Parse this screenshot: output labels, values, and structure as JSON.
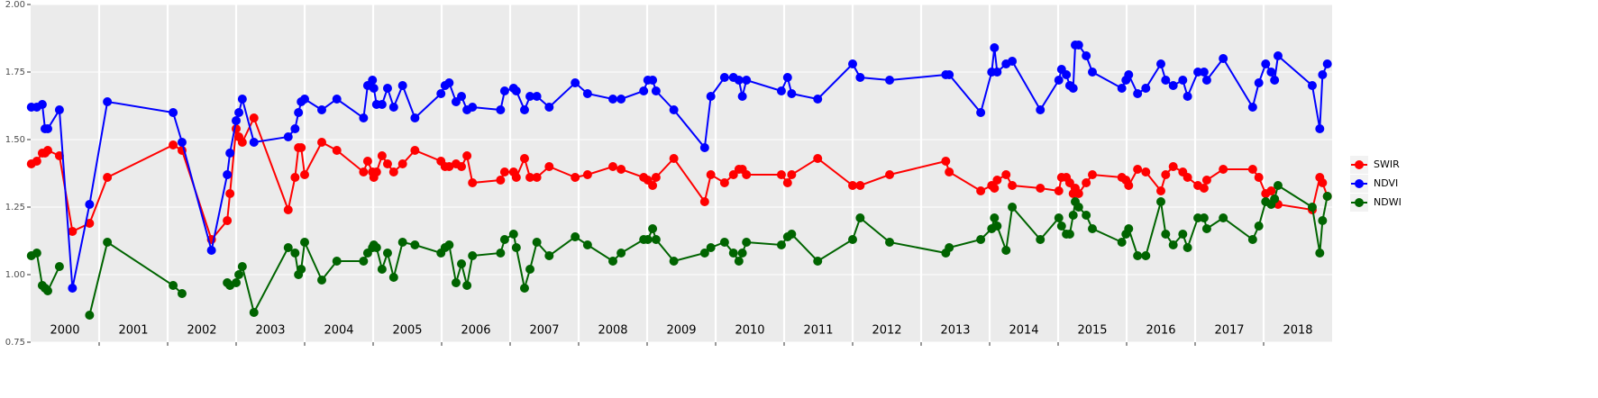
{
  "chart_data": {
    "type": "line",
    "x": [
      2000.01,
      2000.09,
      2000.17,
      2000.21,
      2000.25,
      2000.42,
      2000.61,
      2000.86,
      2001.12,
      2002.08,
      2002.21,
      2002.64,
      2002.87,
      2002.91,
      2003.0,
      2003.04,
      2003.09,
      2003.26,
      2003.76,
      2003.86,
      2003.91,
      2003.95,
      2004.0,
      2004.25,
      2004.47,
      2004.86,
      2004.92,
      2004.99,
      2005.01,
      2005.05,
      2005.13,
      2005.21,
      2005.3,
      2005.43,
      2005.61,
      2005.99,
      2006.05,
      2006.11,
      2006.21,
      2006.29,
      2006.37,
      2006.45,
      2006.86,
      2006.92,
      2007.05,
      2007.09,
      2007.21,
      2007.29,
      2007.39,
      2007.57,
      2007.95,
      2008.13,
      2008.5,
      2008.62,
      2008.95,
      2009.01,
      2009.08,
      2009.13,
      2009.39,
      2009.84,
      2009.93,
      2010.13,
      2010.26,
      2010.34,
      2010.39,
      2010.45,
      2010.96,
      2011.05,
      2011.11,
      2011.49,
      2012.0,
      2012.11,
      2012.54,
      2013.36,
      2013.41,
      2013.87,
      2014.03,
      2014.07,
      2014.11,
      2014.24,
      2014.33,
      2014.74,
      2015.01,
      2015.05,
      2015.12,
      2015.17,
      2015.22,
      2015.25,
      2015.3,
      2015.41,
      2015.5,
      2015.93,
      2015.99,
      2016.03,
      2016.16,
      2016.28,
      2016.5,
      2016.57,
      2016.68,
      2016.82,
      2016.89,
      2017.04,
      2017.13,
      2017.17,
      2017.41,
      2017.84,
      2017.93,
      2018.03,
      2018.11,
      2018.16,
      2018.21,
      2018.71,
      2018.82,
      2018.86,
      2018.93
    ],
    "series": [
      {
        "name": "SWIR",
        "color": "#ff0000",
        "values": [
          1.41,
          1.42,
          1.45,
          1.45,
          1.46,
          1.44,
          1.16,
          1.19,
          1.36,
          1.48,
          1.46,
          1.13,
          1.2,
          1.3,
          1.54,
          1.51,
          1.49,
          1.58,
          1.24,
          1.36,
          1.47,
          1.47,
          1.37,
          1.49,
          1.46,
          1.38,
          1.42,
          1.38,
          1.36,
          1.38,
          1.44,
          1.41,
          1.38,
          1.41,
          1.46,
          1.42,
          1.4,
          1.4,
          1.41,
          1.4,
          1.44,
          1.34,
          1.35,
          1.38,
          1.38,
          1.36,
          1.43,
          1.36,
          1.36,
          1.4,
          1.36,
          1.37,
          1.4,
          1.39,
          1.36,
          1.35,
          1.33,
          1.36,
          1.43,
          1.27,
          1.37,
          1.34,
          1.37,
          1.39,
          1.39,
          1.37,
          1.37,
          1.34,
          1.37,
          1.43,
          1.33,
          1.33,
          1.37,
          1.42,
          1.38,
          1.31,
          1.33,
          1.32,
          1.35,
          1.37,
          1.33,
          1.32,
          1.31,
          1.36,
          1.36,
          1.34,
          1.3,
          1.32,
          1.3,
          1.34,
          1.37,
          1.36,
          1.35,
          1.33,
          1.39,
          1.38,
          1.31,
          1.37,
          1.4,
          1.38,
          1.36,
          1.33,
          1.32,
          1.35,
          1.39,
          1.39,
          1.36,
          1.3,
          1.31,
          1.28,
          1.26,
          1.24,
          1.36,
          1.34,
          1.29
        ]
      },
      {
        "name": "NDVI",
        "color": "#0000ff",
        "values": [
          1.62,
          1.62,
          1.63,
          1.54,
          1.54,
          1.61,
          0.95,
          1.26,
          1.64,
          1.6,
          1.49,
          1.09,
          1.37,
          1.45,
          1.57,
          1.6,
          1.65,
          1.49,
          1.51,
          1.54,
          1.6,
          1.64,
          1.65,
          1.61,
          1.65,
          1.58,
          1.7,
          1.72,
          1.69,
          1.63,
          1.63,
          1.69,
          1.62,
          1.7,
          1.58,
          1.67,
          1.7,
          1.71,
          1.64,
          1.66,
          1.61,
          1.62,
          1.61,
          1.68,
          1.69,
          1.68,
          1.61,
          1.66,
          1.66,
          1.62,
          1.71,
          1.67,
          1.65,
          1.65,
          1.68,
          1.72,
          1.72,
          1.68,
          1.61,
          1.47,
          1.66,
          1.73,
          1.73,
          1.72,
          1.66,
          1.72,
          1.68,
          1.73,
          1.67,
          1.65,
          1.78,
          1.73,
          1.72,
          1.74,
          1.74,
          1.6,
          1.75,
          1.84,
          1.75,
          1.78,
          1.79,
          1.61,
          1.72,
          1.76,
          1.74,
          1.7,
          1.69,
          1.85,
          1.85,
          1.81,
          1.75,
          1.69,
          1.72,
          1.74,
          1.67,
          1.69,
          1.78,
          1.72,
          1.7,
          1.72,
          1.66,
          1.75,
          1.75,
          1.72,
          1.8,
          1.62,
          1.71,
          1.78,
          1.75,
          1.72,
          1.81,
          1.7,
          1.54,
          1.74,
          1.78
        ]
      },
      {
        "name": "NDWI",
        "color": "#006400",
        "values": [
          1.07,
          1.08,
          0.96,
          0.95,
          0.94,
          1.03,
          null,
          0.85,
          1.12,
          0.96,
          0.93,
          null,
          0.97,
          0.96,
          0.97,
          1.0,
          1.03,
          0.86,
          1.1,
          1.08,
          1.0,
          1.02,
          1.12,
          0.98,
          1.05,
          1.05,
          1.08,
          1.1,
          1.11,
          1.1,
          1.02,
          1.08,
          0.99,
          1.12,
          1.11,
          1.08,
          1.1,
          1.11,
          0.97,
          1.04,
          0.96,
          1.07,
          1.08,
          1.13,
          1.15,
          1.1,
          0.95,
          1.02,
          1.12,
          1.07,
          1.14,
          1.11,
          1.05,
          1.08,
          1.13,
          1.13,
          1.17,
          1.13,
          1.05,
          1.08,
          1.1,
          1.12,
          1.08,
          1.05,
          1.08,
          1.12,
          1.11,
          1.14,
          1.15,
          1.05,
          1.13,
          1.21,
          1.12,
          1.08,
          1.1,
          1.13,
          1.17,
          1.21,
          1.18,
          1.09,
          1.25,
          1.13,
          1.21,
          1.18,
          1.15,
          1.15,
          1.22,
          1.27,
          1.25,
          1.22,
          1.17,
          1.12,
          1.15,
          1.17,
          1.07,
          1.07,
          1.27,
          1.15,
          1.11,
          1.15,
          1.1,
          1.21,
          1.21,
          1.17,
          1.21,
          1.13,
          1.18,
          1.27,
          1.26,
          1.28,
          1.33,
          1.25,
          1.08,
          1.2,
          1.29
        ]
      }
    ],
    "xlim": [
      2000,
      2019
    ],
    "xticks": [
      2001,
      2002,
      2003,
      2004,
      2005,
      2006,
      2007,
      2008,
      2009,
      2010,
      2011,
      2012,
      2013,
      2014,
      2015,
      2016,
      2017,
      2018
    ],
    "year_labels": [
      "2000",
      "2001",
      "2002",
      "2003",
      "2004",
      "2005",
      "2006",
      "2007",
      "2008",
      "2009",
      "2010",
      "2011",
      "2012",
      "2013",
      "2014",
      "2015",
      "2016",
      "2017",
      "2018"
    ],
    "ylim": [
      0.75,
      2.0
    ],
    "yticks": [
      {
        "value": 0.75,
        "label": "0.75"
      },
      {
        "value": 1.0,
        "label": "1.00"
      },
      {
        "value": 1.25,
        "label": "1.25"
      },
      {
        "value": 1.5,
        "label": "1.50"
      },
      {
        "value": 1.75,
        "label": "1.75"
      },
      {
        "value": 2.0,
        "label": "2.00"
      }
    ],
    "grid": true,
    "legend": "right"
  }
}
